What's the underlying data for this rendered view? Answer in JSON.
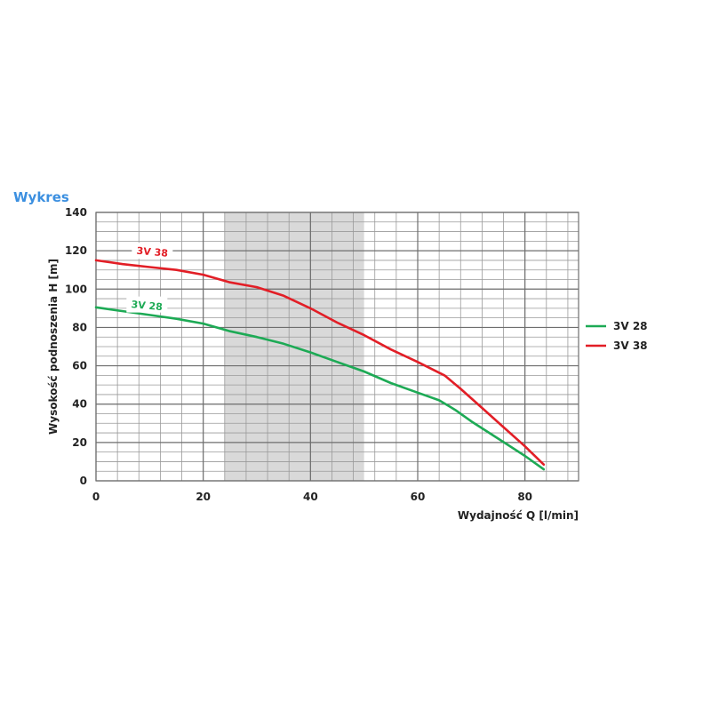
{
  "heading": "Wykres",
  "colors": {
    "heading": "#3b8fe0",
    "series_3v28": "#1daa55",
    "series_3v38": "#e21e26",
    "highlight_band": "#d9d9d9"
  },
  "chart_data": {
    "type": "line",
    "xlabel": "Wydajność Q [l/min]",
    "ylabel": "Wysokość podnoszenia H [m]",
    "xlim": [
      0,
      90
    ],
    "ylim": [
      0,
      140
    ],
    "xticks": [
      0,
      20,
      40,
      60,
      80
    ],
    "yticks": [
      0,
      20,
      40,
      60,
      80,
      100,
      120,
      140
    ],
    "grid": true,
    "highlight_band_x": [
      24,
      50
    ],
    "legend_position": "right",
    "series": [
      {
        "name": "3V 28",
        "color": "#1daa55",
        "x": [
          0,
          5,
          10,
          15,
          20,
          25,
          30,
          35,
          40,
          45,
          50,
          55,
          60,
          64,
          67,
          70,
          75,
          80,
          83.5
        ],
        "y": [
          90.5,
          88.5,
          86.5,
          84.5,
          82,
          78,
          75,
          71.5,
          67,
          62,
          57,
          51,
          46,
          42,
          37,
          31,
          22,
          13,
          6
        ]
      },
      {
        "name": "3V 38",
        "color": "#e21e26",
        "x": [
          0,
          5,
          10,
          15,
          20,
          25,
          30,
          35,
          40,
          45,
          50,
          55,
          60,
          65,
          68,
          72,
          76,
          80,
          83.5
        ],
        "y": [
          115,
          113,
          111.5,
          110,
          107.5,
          103.5,
          101,
          96.5,
          90,
          82.5,
          76,
          68.5,
          62,
          55,
          48,
          38,
          28,
          18,
          8.5
        ]
      }
    ],
    "inline_labels": [
      {
        "series": "3V 38",
        "text": "3V 38",
        "x": 10.5,
        "y": 119.5
      },
      {
        "series": "3V 28",
        "text": "3V 28",
        "x": 9.5,
        "y": 91.5
      }
    ]
  }
}
